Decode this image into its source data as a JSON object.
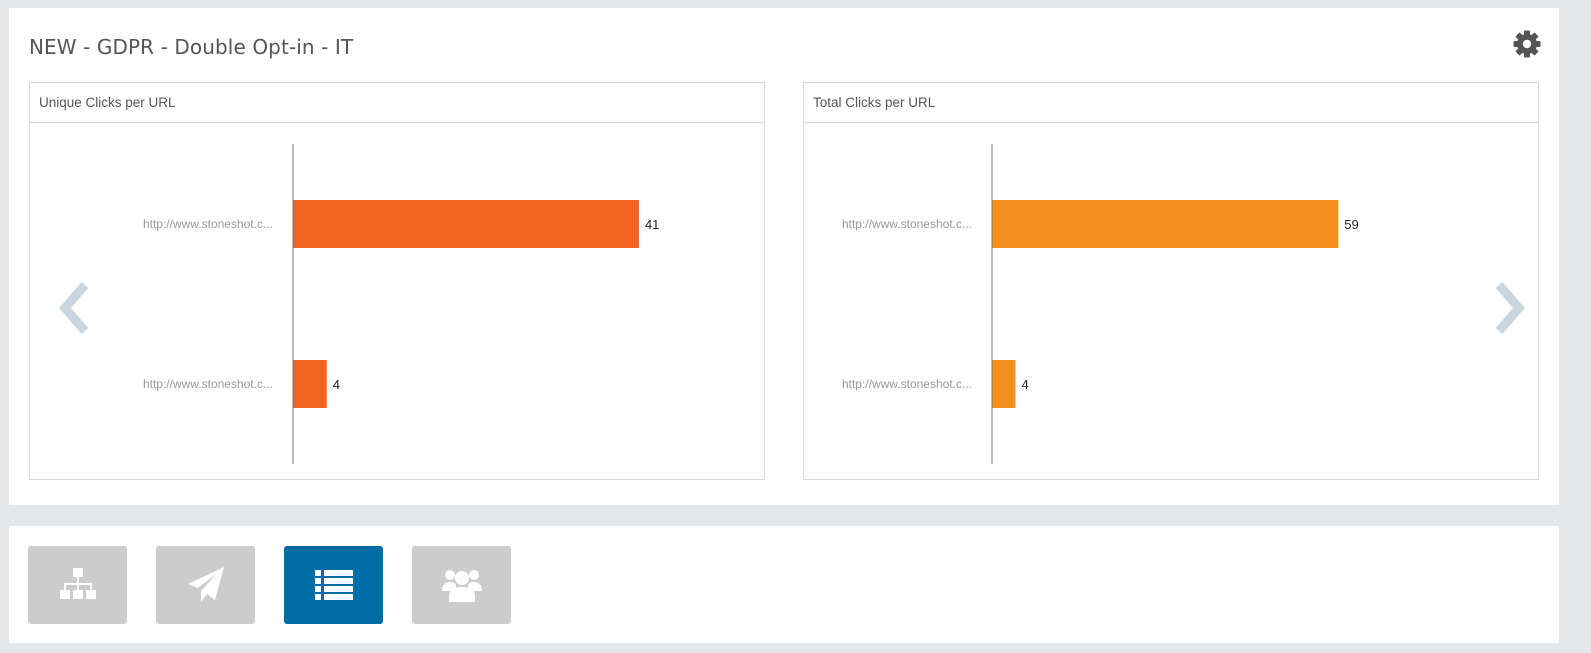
{
  "header": {
    "title": "NEW - GDPR - Double Opt-in - IT",
    "settings_icon": "gear-icon"
  },
  "colors": {
    "unique_bar": "#f26322",
    "total_bar": "#f3901e",
    "active_nav": "#006ca6",
    "inactive_nav": "#cccccc",
    "arrow": "#c9d6dd"
  },
  "charts": {
    "unique": {
      "title": "Unique Clicks per URL"
    },
    "total": {
      "title": "Total Clicks per URL"
    }
  },
  "chart_data": [
    {
      "type": "bar",
      "orientation": "horizontal",
      "title": "Unique Clicks per URL",
      "categories": [
        "http://www.stoneshot.c...",
        "http://www.stoneshot.c..."
      ],
      "values": [
        41,
        4
      ],
      "xlim": [
        0,
        48
      ],
      "grid": false,
      "color": "#f26322"
    },
    {
      "type": "bar",
      "orientation": "horizontal",
      "title": "Total Clicks per URL",
      "categories": [
        "http://www.stoneshot.c...",
        "http://www.stoneshot.c..."
      ],
      "values": [
        59,
        4
      ],
      "xlim": [
        0,
        69
      ],
      "grid": false,
      "color": "#f3901e"
    }
  ],
  "carousel": {
    "prev_icon": "chevron-left-icon",
    "next_icon": "chevron-right-icon"
  },
  "nav": {
    "buttons": [
      {
        "icon": "sitemap-icon",
        "active": false
      },
      {
        "icon": "paper-plane-icon",
        "active": false
      },
      {
        "icon": "list-icon",
        "active": true
      },
      {
        "icon": "users-icon",
        "active": false
      }
    ]
  }
}
